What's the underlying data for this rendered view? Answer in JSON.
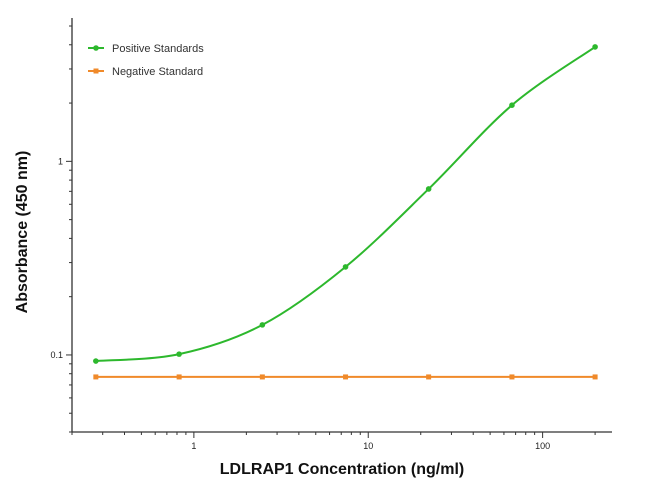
{
  "chart_data": {
    "type": "line",
    "xlabel": "LDLRAP1 Concentration (ng/ml)",
    "ylabel": "Absorbance (450 nm)",
    "x_scale": "log",
    "y_scale": "log",
    "xlim": [
      0.2,
      250
    ],
    "ylim": [
      0.04,
      5.5
    ],
    "x_ticks": [
      1,
      10,
      100
    ],
    "x_tick_labels": [
      "1",
      "10",
      "100"
    ],
    "y_ticks": [
      0.1,
      1
    ],
    "y_tick_labels": [
      "0.1",
      "1"
    ],
    "grid": false,
    "legend_position": "top-left",
    "series": [
      {
        "name": "Positive Standards",
        "color": "#2db82d",
        "marker": "circle",
        "curve": "4PL fit",
        "x": [
          0.274,
          0.823,
          2.47,
          7.41,
          22.2,
          66.7,
          200
        ],
        "y": [
          0.093,
          0.101,
          0.143,
          0.285,
          0.72,
          1.95,
          3.9
        ]
      },
      {
        "name": "Negative Standard",
        "color": "#f08a2a",
        "marker": "square",
        "curve": "straight",
        "x": [
          0.274,
          0.823,
          2.47,
          7.41,
          22.2,
          66.7,
          200
        ],
        "y": [
          0.077,
          0.077,
          0.077,
          0.077,
          0.077,
          0.077,
          0.077
        ]
      }
    ]
  }
}
